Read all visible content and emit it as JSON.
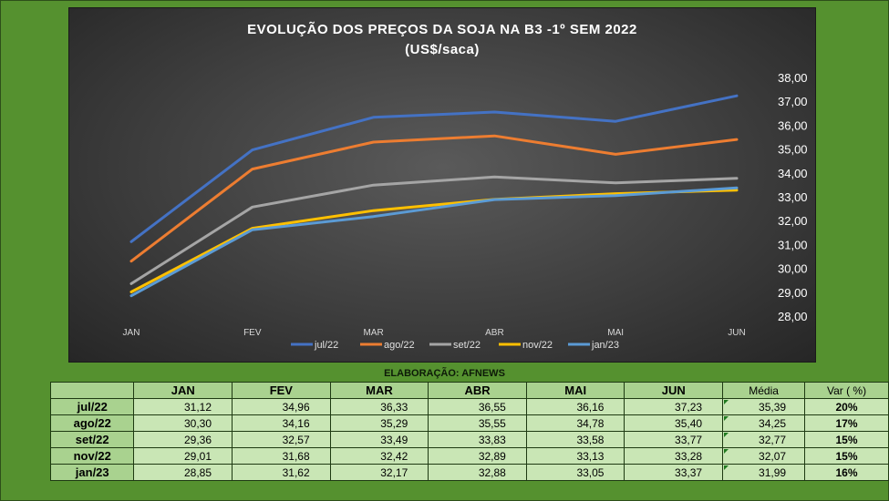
{
  "chart_data": {
    "type": "line",
    "title": "EVOLUÇÃO  DOS PREÇOS DA SOJA NA B3 -1º SEM 2022",
    "subtitle": "(US$/saca)",
    "categories": [
      "JAN",
      "FEV",
      "MAR",
      "ABR",
      "MAI",
      "JUN"
    ],
    "ylim": [
      28,
      38
    ],
    "yticks": [
      "28,00",
      "29,00",
      "30,00",
      "31,00",
      "32,00",
      "33,00",
      "34,00",
      "35,00",
      "36,00",
      "37,00",
      "38,00"
    ],
    "grid": false,
    "legend": "bottom",
    "series": [
      {
        "name": "jul/22",
        "color": "#4472c4",
        "values": [
          31.12,
          34.96,
          36.33,
          36.55,
          36.16,
          37.23
        ]
      },
      {
        "name": "ago/22",
        "color": "#ed7d31",
        "values": [
          30.3,
          34.16,
          35.29,
          35.55,
          34.78,
          35.4
        ]
      },
      {
        "name": "set/22",
        "color": "#a5a5a5",
        "values": [
          29.36,
          32.57,
          33.49,
          33.83,
          33.58,
          33.77
        ]
      },
      {
        "name": "nov/22",
        "color": "#ffc000",
        "values": [
          29.01,
          31.68,
          32.42,
          32.89,
          33.13,
          33.28
        ]
      },
      {
        "name": "jan/23",
        "color": "#5b9bd5",
        "values": [
          28.85,
          31.62,
          32.17,
          32.88,
          33.05,
          33.37
        ]
      }
    ]
  },
  "credit": "ELABORAÇÃO: AFNEWS",
  "table": {
    "headers": [
      "JAN",
      "FEV",
      "MAR",
      "ABR",
      "MAI",
      "JUN",
      "Média",
      "Var ( %)"
    ],
    "rows": [
      {
        "label": "jul/22",
        "values": [
          "31,12",
          "34,96",
          "36,33",
          "36,55",
          "36,16",
          "37,23"
        ],
        "media": "35,39",
        "var": "20%"
      },
      {
        "label": "ago/22",
        "values": [
          "30,30",
          "34,16",
          "35,29",
          "35,55",
          "34,78",
          "35,40"
        ],
        "media": "34,25",
        "var": "17%"
      },
      {
        "label": "set/22",
        "values": [
          "29,36",
          "32,57",
          "33,49",
          "33,83",
          "33,58",
          "33,77"
        ],
        "media": "32,77",
        "var": "15%"
      },
      {
        "label": "nov/22",
        "values": [
          "29,01",
          "31,68",
          "32,42",
          "32,89",
          "33,13",
          "33,28"
        ],
        "media": "32,07",
        "var": "15%"
      },
      {
        "label": "jan/23",
        "values": [
          "28,85",
          "31,62",
          "32,17",
          "32,88",
          "33,05",
          "33,37"
        ],
        "media": "31,99",
        "var": "16%"
      }
    ]
  }
}
